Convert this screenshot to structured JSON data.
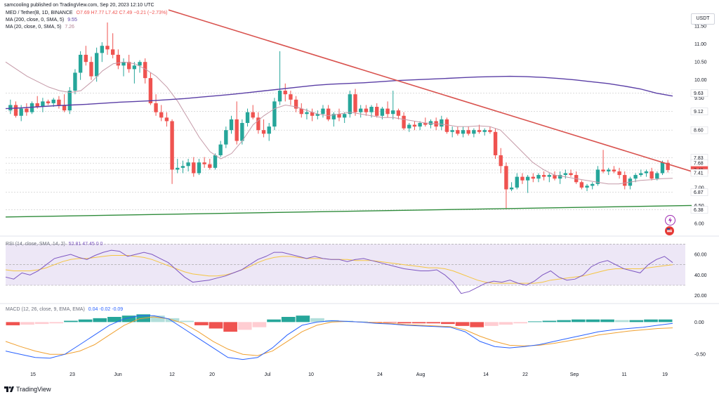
{
  "header": {
    "attribution": "samcooling published on TradingView.com, Sep 20, 2023 12:10 UTC"
  },
  "legend": {
    "symbol": "MED / Tether(B, 1D, BINANCE",
    "ohlc": "O7.69 H7.77 L7.42 C7.49 −0.21 (−2.73%)",
    "ma200_label": "MA (200, close, 0, SMA, 5)",
    "ma200_value": "9.55",
    "ma20_label": "MA (20, close, 0, SMA, 5)",
    "ma20_value": "7.26",
    "rsi_label": "RSI (14, close, SMA, 14, 2)",
    "rsi_values": "52.81 47.45 0 0",
    "macd_label": "MACD (12, 26, close, 9, EMA, EMA)",
    "macd_values": "0.04 -0.02 -0.09"
  },
  "currency_button": "USDT",
  "brand": "TradingView",
  "colors": {
    "up": "#26a69a",
    "down": "#ef5350",
    "ma200": "#5b3fa6",
    "ma20": "#c59aa8",
    "trend_down": "#d9534f",
    "support": "#2e8b3a",
    "rsi": "#7e57c2",
    "rsi_ma": "#f5c542",
    "macd": "#2962ff",
    "signal": "#f0a030",
    "price_label": "#ef5350"
  },
  "chart_data": {
    "type": "candlestick",
    "x_axis_labels": [
      "15",
      "23",
      "Jun",
      "12",
      "20",
      "Jul",
      "10",
      "24",
      "Aug",
      "14",
      "22",
      "Sep",
      "11",
      "19"
    ],
    "y_axis_labels": [
      "11.50",
      "11.00",
      "10.50",
      "10.00",
      "9.63",
      "9.50",
      "9.12",
      "8.60",
      "7.83",
      "7.68",
      "7.49",
      "7.41",
      "7.00",
      "6.87",
      "6.50",
      "6.38",
      "6.00"
    ],
    "price_range": [
      6.0,
      11.6
    ],
    "candles_ohlc": [
      [
        9.15,
        9.45,
        9.05,
        9.3
      ],
      [
        9.3,
        9.4,
        8.95,
        9.0
      ],
      [
        9.0,
        9.3,
        8.85,
        9.2
      ],
      [
        9.2,
        9.35,
        9.0,
        9.1
      ],
      [
        9.1,
        9.4,
        9.05,
        9.35
      ],
      [
        9.35,
        9.55,
        9.2,
        9.25
      ],
      [
        9.25,
        9.5,
        9.1,
        9.4
      ],
      [
        9.4,
        9.45,
        9.3,
        9.35
      ],
      [
        9.35,
        9.5,
        9.25,
        9.45
      ],
      [
        9.45,
        9.55,
        9.2,
        9.3
      ],
      [
        9.3,
        9.6,
        9.1,
        9.15
      ],
      [
        9.15,
        9.8,
        9.05,
        9.7
      ],
      [
        9.7,
        10.3,
        9.6,
        10.2
      ],
      [
        10.2,
        10.8,
        10.0,
        10.7
      ],
      [
        10.7,
        10.95,
        10.4,
        10.5
      ],
      [
        10.5,
        10.65,
        10.0,
        10.1
      ],
      [
        10.1,
        10.9,
        9.95,
        10.75
      ],
      [
        10.75,
        11.05,
        10.5,
        10.95
      ],
      [
        10.95,
        11.6,
        10.7,
        10.85
      ],
      [
        10.85,
        11.3,
        10.6,
        10.7
      ],
      [
        10.7,
        10.85,
        10.3,
        10.4
      ],
      [
        10.4,
        10.6,
        10.1,
        10.5
      ],
      [
        10.5,
        10.7,
        10.2,
        10.3
      ],
      [
        10.3,
        10.5,
        9.9,
        10.4
      ],
      [
        10.4,
        10.55,
        10.2,
        10.5
      ],
      [
        10.5,
        10.6,
        9.9,
        10.05
      ],
      [
        10.05,
        10.2,
        9.3,
        9.35
      ],
      [
        9.35,
        9.6,
        9.0,
        9.1
      ],
      [
        9.1,
        9.3,
        8.85,
        8.95
      ],
      [
        8.95,
        9.1,
        8.7,
        8.85
      ],
      [
        8.85,
        8.9,
        7.1,
        7.5
      ],
      [
        7.5,
        7.8,
        7.4,
        7.55
      ],
      [
        7.55,
        7.75,
        7.4,
        7.6
      ],
      [
        7.6,
        7.8,
        7.45,
        7.7
      ],
      [
        7.7,
        7.85,
        7.3,
        7.4
      ],
      [
        7.4,
        7.8,
        7.35,
        7.7
      ],
      [
        7.7,
        7.85,
        7.55,
        7.65
      ],
      [
        7.65,
        7.8,
        7.5,
        7.55
      ],
      [
        7.55,
        7.95,
        7.5,
        7.9
      ],
      [
        7.9,
        8.3,
        7.85,
        8.2
      ],
      [
        8.2,
        8.7,
        8.1,
        8.6
      ],
      [
        8.6,
        9.0,
        8.5,
        8.9
      ],
      [
        8.9,
        9.4,
        8.2,
        8.3
      ],
      [
        8.3,
        8.9,
        8.2,
        8.8
      ],
      [
        8.8,
        9.2,
        8.7,
        9.1
      ],
      [
        9.1,
        9.3,
        8.9,
        8.95
      ],
      [
        8.95,
        9.1,
        8.5,
        8.6
      ],
      [
        8.6,
        8.9,
        8.4,
        8.5
      ],
      [
        8.5,
        8.8,
        8.3,
        8.7
      ],
      [
        8.7,
        9.5,
        8.6,
        9.4
      ],
      [
        9.4,
        10.8,
        9.3,
        9.7
      ],
      [
        9.7,
        9.9,
        9.4,
        9.6
      ],
      [
        9.6,
        9.7,
        9.3,
        9.45
      ],
      [
        9.45,
        9.55,
        9.1,
        9.2
      ],
      [
        9.2,
        9.35,
        8.95,
        9.05
      ],
      [
        9.05,
        9.2,
        8.9,
        9.1
      ],
      [
        9.1,
        9.2,
        8.85,
        9.0
      ],
      [
        9.0,
        9.15,
        8.9,
        9.05
      ],
      [
        9.05,
        9.3,
        8.95,
        9.2
      ],
      [
        9.2,
        9.3,
        8.85,
        8.9
      ],
      [
        8.9,
        9.1,
        8.7,
        9.05
      ],
      [
        9.05,
        9.2,
        8.85,
        8.95
      ],
      [
        8.95,
        9.1,
        8.8,
        9.05
      ],
      [
        9.05,
        9.7,
        8.95,
        9.6
      ],
      [
        9.6,
        9.75,
        9.0,
        9.1
      ],
      [
        9.1,
        9.3,
        8.95,
        9.2
      ],
      [
        9.2,
        9.3,
        9.0,
        9.1
      ],
      [
        9.1,
        9.3,
        8.95,
        9.25
      ],
      [
        9.25,
        9.35,
        8.95,
        9.0
      ],
      [
        9.0,
        9.25,
        8.9,
        9.2
      ],
      [
        9.2,
        9.4,
        8.95,
        9.05
      ],
      [
        9.05,
        9.7,
        8.9,
        9.15
      ],
      [
        9.15,
        9.2,
        8.9,
        9.0
      ],
      [
        9.0,
        9.1,
        8.6,
        8.65
      ],
      [
        8.65,
        8.8,
        8.55,
        8.75
      ],
      [
        8.75,
        8.85,
        8.6,
        8.7
      ],
      [
        8.7,
        8.85,
        8.6,
        8.8
      ],
      [
        8.8,
        8.95,
        8.7,
        8.75
      ],
      [
        8.75,
        8.9,
        8.65,
        8.85
      ],
      [
        8.85,
        8.95,
        8.6,
        8.7
      ],
      [
        8.7,
        9.0,
        8.6,
        8.9
      ],
      [
        8.9,
        8.95,
        8.5,
        8.55
      ],
      [
        8.55,
        8.7,
        8.4,
        8.6
      ],
      [
        8.6,
        8.7,
        8.45,
        8.5
      ],
      [
        8.5,
        8.7,
        8.4,
        8.6
      ],
      [
        8.6,
        8.7,
        8.45,
        8.5
      ],
      [
        8.5,
        8.65,
        8.4,
        8.6
      ],
      [
        8.6,
        8.75,
        8.5,
        8.55
      ],
      [
        8.55,
        8.65,
        8.45,
        8.6
      ],
      [
        8.6,
        8.7,
        8.5,
        8.55
      ],
      [
        8.55,
        8.65,
        7.8,
        7.9
      ],
      [
        7.9,
        8.1,
        7.4,
        7.6
      ],
      [
        7.6,
        7.7,
        6.4,
        6.95
      ],
      [
        6.95,
        7.15,
        6.9,
        7.0
      ],
      [
        7.0,
        7.4,
        6.95,
        7.3
      ],
      [
        7.3,
        7.4,
        7.1,
        7.2
      ],
      [
        7.2,
        7.35,
        6.85,
        7.3
      ],
      [
        7.3,
        7.4,
        7.15,
        7.25
      ],
      [
        7.25,
        7.4,
        7.15,
        7.35
      ],
      [
        7.35,
        7.45,
        7.2,
        7.3
      ],
      [
        7.3,
        7.4,
        7.15,
        7.35
      ],
      [
        7.35,
        7.45,
        7.2,
        7.25
      ],
      [
        7.25,
        7.45,
        7.1,
        7.35
      ],
      [
        7.35,
        7.5,
        7.25,
        7.4
      ],
      [
        7.4,
        7.5,
        7.3,
        7.35
      ],
      [
        7.35,
        7.45,
        7.1,
        7.15
      ],
      [
        7.15,
        7.2,
        6.95,
        7.0
      ],
      [
        7.0,
        7.1,
        6.9,
        7.05
      ],
      [
        7.05,
        7.15,
        6.95,
        7.1
      ],
      [
        7.1,
        7.6,
        7.05,
        7.5
      ],
      [
        7.5,
        8.05,
        7.4,
        7.45
      ],
      [
        7.45,
        7.55,
        7.35,
        7.5
      ],
      [
        7.5,
        7.6,
        7.4,
        7.45
      ],
      [
        7.45,
        7.55,
        7.25,
        7.35
      ],
      [
        7.35,
        7.45,
        6.95,
        7.05
      ],
      [
        7.05,
        7.3,
        6.95,
        7.25
      ],
      [
        7.25,
        7.4,
        7.15,
        7.35
      ],
      [
        7.35,
        7.5,
        7.3,
        7.4
      ],
      [
        7.4,
        7.5,
        7.3,
        7.45
      ],
      [
        7.45,
        7.55,
        7.2,
        7.25
      ],
      [
        7.25,
        7.45,
        7.2,
        7.4
      ],
      [
        7.4,
        7.75,
        7.35,
        7.7
      ],
      [
        7.69,
        7.77,
        7.42,
        7.49
      ]
    ],
    "ma200": [
      9.2,
      9.22,
      9.25,
      9.28,
      9.3,
      9.32,
      9.35,
      9.38,
      9.4,
      9.42,
      9.45,
      9.48,
      9.52,
      9.56,
      9.6,
      9.65,
      9.7,
      9.75,
      9.8,
      9.85,
      9.88,
      9.9,
      9.92,
      9.95,
      9.98,
      10.0,
      10.02,
      10.04,
      10.06,
      10.08,
      10.09,
      10.1,
      10.09,
      10.07,
      10.04,
      10.0,
      9.95,
      9.9,
      9.83,
      9.75,
      9.63,
      9.55
    ],
    "ma20": [
      10.5,
      10.3,
      10.1,
      9.95,
      9.8,
      9.7,
      9.65,
      9.7,
      9.95,
      10.25,
      10.45,
      10.5,
      10.45,
      10.3,
      10.1,
      9.8,
      9.4,
      8.9,
      8.4,
      8.0,
      7.8,
      7.95,
      8.3,
      8.75,
      9.0,
      9.2,
      9.3,
      9.25,
      9.15,
      9.05,
      9.0,
      9.05,
      9.1,
      9.05,
      9.0,
      8.95,
      8.95,
      8.9,
      8.85,
      8.8,
      8.78,
      8.75,
      8.7,
      8.7,
      8.72,
      8.7,
      8.6,
      8.3,
      8.0,
      7.7,
      7.5,
      7.35,
      7.3,
      7.25,
      7.2,
      7.15,
      7.1,
      7.1,
      7.15,
      7.2,
      7.22,
      7.25,
      7.26
    ],
    "trendline_down": {
      "start_price": 11.95,
      "end_price": 7.45
    },
    "support_line": {
      "start_price": 6.18,
      "end_price": 6.5
    },
    "price_labels": [
      {
        "value": 9.63,
        "bg": "#ffffff"
      },
      {
        "value": 9.12,
        "bg": "#ffffff"
      },
      {
        "value": 8.6,
        "bg": "#ffffff"
      },
      {
        "value": 7.83,
        "bg": "#ffffff"
      },
      {
        "value": 7.68,
        "bg": "#ffffff"
      },
      {
        "value": 7.49,
        "bg": "#ef5350"
      },
      {
        "value": 7.41,
        "bg": "#ffffff"
      },
      {
        "value": 6.87,
        "bg": "#ffffff"
      },
      {
        "value": 6.38,
        "bg": "#ffffff"
      }
    ],
    "rsi": {
      "y_labels": [
        "60.00",
        "40.00",
        "20.00"
      ],
      "ylim": [
        15,
        75
      ],
      "upper_band": 70,
      "lower_band": 30,
      "values": [
        38,
        36,
        42,
        40,
        44,
        50,
        56,
        58,
        60,
        57,
        55,
        59,
        62,
        64,
        63,
        58,
        60,
        62,
        60,
        56,
        52,
        45,
        38,
        33,
        34,
        35,
        37,
        39,
        42,
        45,
        50,
        55,
        58,
        62,
        62,
        60,
        58,
        56,
        58,
        56,
        55,
        55,
        53,
        55,
        56,
        54,
        52,
        50,
        48,
        46,
        45,
        44,
        44,
        45,
        40,
        33,
        22,
        24,
        28,
        32,
        34,
        33,
        35,
        32,
        30,
        34,
        40,
        44,
        38,
        35,
        36,
        40,
        48,
        52,
        54,
        50,
        46,
        44,
        42,
        50,
        55,
        58,
        52
      ],
      "signal": [
        45,
        44,
        44,
        44,
        45,
        47,
        50,
        53,
        55,
        56,
        56,
        57,
        58,
        59,
        59,
        59,
        58,
        57,
        55,
        52,
        49,
        46,
        43,
        41,
        40,
        39,
        39,
        40,
        42,
        45,
        48,
        52,
        55,
        57,
        58,
        58,
        57,
        56,
        56,
        56,
        55,
        55,
        55,
        54,
        54,
        54,
        53,
        52,
        51,
        50,
        49,
        48,
        47,
        47,
        46,
        44,
        41,
        38,
        35,
        33,
        32,
        32,
        32,
        32,
        32,
        32,
        33,
        35,
        36,
        37,
        38,
        39,
        41,
        43,
        45,
        46,
        46,
        46,
        46,
        47,
        48,
        49,
        50
      ]
    },
    "macd": {
      "y_labels": [
        "0.00",
        "-0.50"
      ],
      "ylim": [
        -0.65,
        0.2
      ],
      "macd_line": [
        -0.45,
        -0.5,
        -0.55,
        -0.56,
        -0.5,
        -0.35,
        -0.2,
        -0.05,
        0.05,
        0.1,
        0.1,
        0.05,
        -0.1,
        -0.25,
        -0.4,
        -0.55,
        -0.58,
        -0.55,
        -0.4,
        -0.2,
        -0.05,
        0.0,
        0.02,
        0.01,
        0.0,
        -0.02,
        -0.03,
        -0.05,
        -0.06,
        -0.07,
        -0.08,
        -0.15,
        -0.3,
        -0.38,
        -0.4,
        -0.38,
        -0.35,
        -0.3,
        -0.25,
        -0.2,
        -0.15,
        -0.12,
        -0.1,
        -0.08,
        -0.05,
        -0.02
      ],
      "signal_line": [
        -0.3,
        -0.38,
        -0.45,
        -0.5,
        -0.5,
        -0.45,
        -0.35,
        -0.2,
        -0.05,
        0.05,
        0.08,
        0.05,
        -0.02,
        -0.15,
        -0.3,
        -0.42,
        -0.5,
        -0.52,
        -0.45,
        -0.3,
        -0.15,
        -0.05,
        0.0,
        0.01,
        0.0,
        -0.01,
        -0.02,
        -0.04,
        -0.05,
        -0.06,
        -0.07,
        -0.12,
        -0.22,
        -0.3,
        -0.36,
        -0.37,
        -0.36,
        -0.33,
        -0.29,
        -0.25,
        -0.2,
        -0.17,
        -0.14,
        -0.12,
        -0.1,
        -0.09
      ],
      "histogram": [
        -0.05,
        -0.04,
        -0.03,
        -0.02,
        0.02,
        0.04,
        0.06,
        0.08,
        0.1,
        0.12,
        0.1,
        0.06,
        0.02,
        -0.05,
        -0.1,
        -0.15,
        -0.12,
        -0.08,
        0.04,
        0.08,
        0.1,
        0.06,
        0.03,
        0.02,
        0.01,
        -0.01,
        -0.01,
        -0.02,
        -0.02,
        -0.02,
        -0.03,
        -0.06,
        -0.08,
        -0.06,
        -0.04,
        -0.02,
        0.01,
        0.02,
        0.03,
        0.04,
        0.04,
        0.04,
        0.03,
        0.03,
        0.04,
        0.04
      ]
    }
  }
}
